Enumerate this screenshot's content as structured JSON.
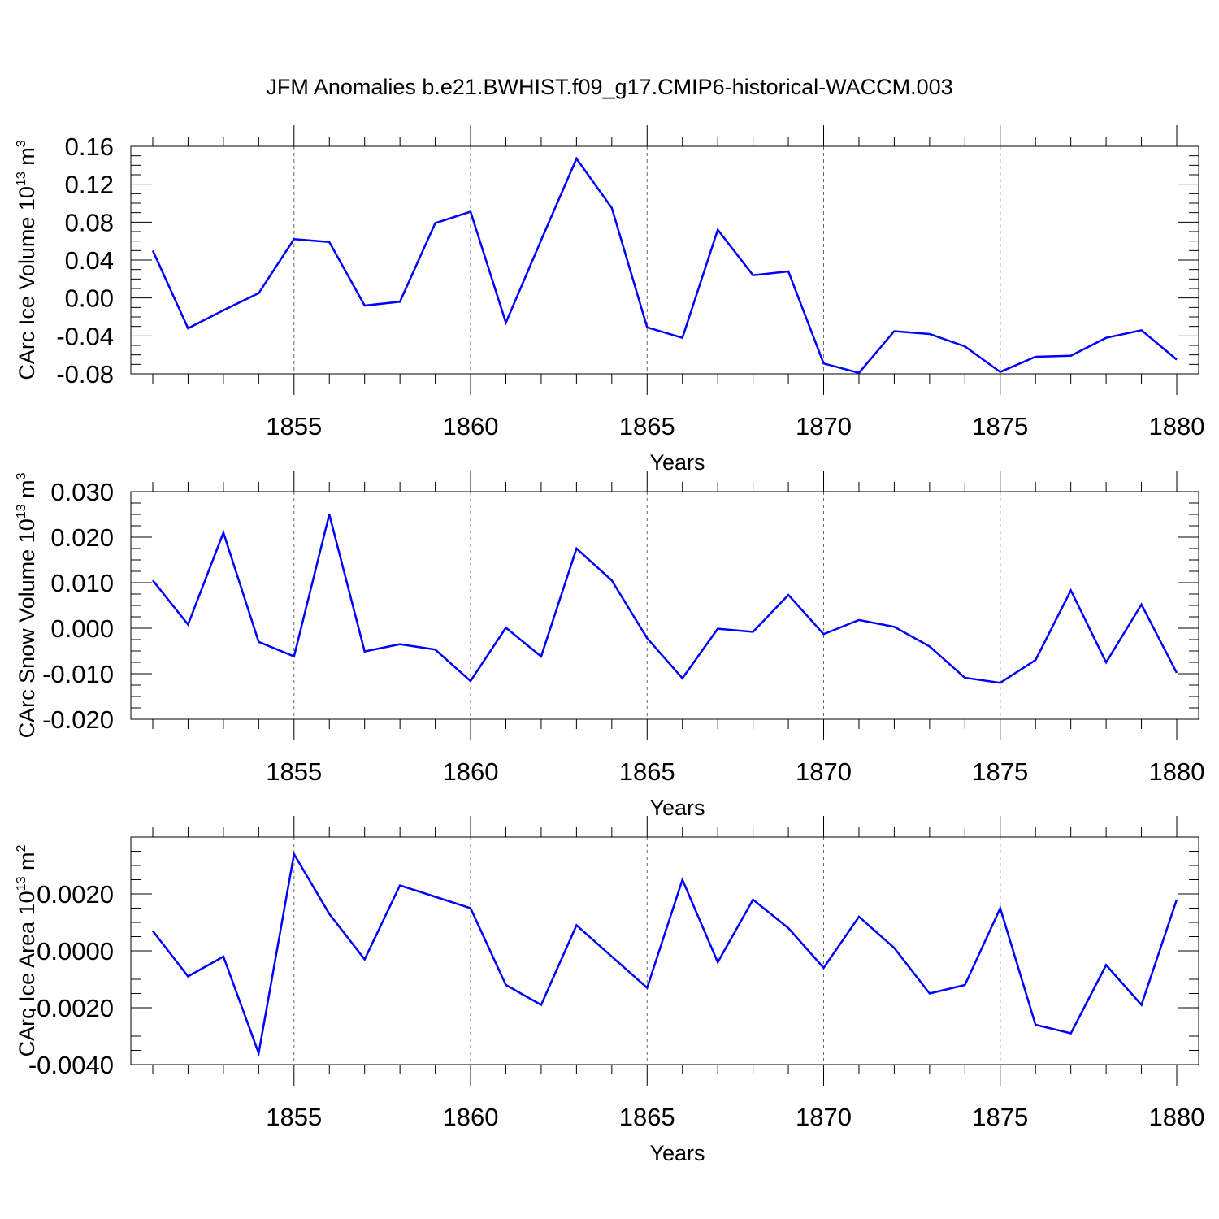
{
  "chart_data": [
    {
      "type": "line",
      "title": "JFM Anomalies b.e21.BWHIST.f09_g17.CMIP6-historical-WACCM.003",
      "xlabel": "Years",
      "ylabel": {
        "text": "CArc Ice Volume 10",
        "sup1": "13",
        "mid": " m",
        "sup2": "3"
      },
      "xlim": [
        1851,
        1880
      ],
      "ylim": [
        -0.08,
        0.16
      ],
      "yticks": [
        -0.08,
        -0.04,
        0.0,
        0.04,
        0.08,
        0.12,
        0.16
      ],
      "ytick_labels": [
        "-0.08",
        "-0.04",
        "0.00",
        "0.04",
        "0.08",
        "0.12",
        "0.16"
      ],
      "xticks": [
        1855,
        1860,
        1865,
        1870,
        1875,
        1880
      ],
      "xtick_labels": [
        "1855",
        "1860",
        "1865",
        "1870",
        "1875",
        "1880"
      ],
      "grid": "vertical dashed at major x ticks",
      "color": "#0000ff",
      "series": [
        {
          "name": "CArc Ice Volume",
          "x": [
            1851,
            1852,
            1853,
            1854,
            1855,
            1856,
            1857,
            1858,
            1859,
            1860,
            1861,
            1862,
            1863,
            1864,
            1865,
            1866,
            1867,
            1868,
            1869,
            1870,
            1871,
            1872,
            1873,
            1874,
            1875,
            1876,
            1877,
            1878,
            1879,
            1880
          ],
          "values": [
            0.05,
            -0.032,
            -0.013,
            0.005,
            0.062,
            0.059,
            -0.008,
            -0.004,
            0.079,
            0.091,
            -0.026,
            0.061,
            0.147,
            0.095,
            -0.031,
            -0.042,
            0.072,
            0.024,
            0.028,
            -0.069,
            -0.079,
            -0.035,
            -0.038,
            -0.051,
            -0.078,
            -0.062,
            -0.061,
            -0.042,
            -0.034,
            -0.065
          ]
        }
      ]
    },
    {
      "type": "line",
      "xlabel": "Years",
      "ylabel": {
        "text": "CArc Snow Volume 10",
        "sup1": "13",
        "mid": " m",
        "sup2": "3"
      },
      "xlim": [
        1851,
        1880
      ],
      "ylim": [
        -0.02,
        0.03
      ],
      "yticks": [
        -0.02,
        -0.01,
        0.0,
        0.01,
        0.02,
        0.03
      ],
      "ytick_labels": [
        "-0.020",
        "-0.010",
        "0.000",
        "0.010",
        "0.020",
        "0.030"
      ],
      "xticks": [
        1855,
        1860,
        1865,
        1870,
        1875,
        1880
      ],
      "xtick_labels": [
        "1855",
        "1860",
        "1865",
        "1870",
        "1875",
        "1880"
      ],
      "grid": "vertical dashed at major x ticks",
      "color": "#0000ff",
      "series": [
        {
          "name": "CArc Snow Volume",
          "x": [
            1851,
            1852,
            1853,
            1854,
            1855,
            1856,
            1857,
            1858,
            1859,
            1860,
            1861,
            1862,
            1863,
            1864,
            1865,
            1866,
            1867,
            1868,
            1869,
            1870,
            1871,
            1872,
            1873,
            1874,
            1875,
            1876,
            1877,
            1878,
            1879,
            1880
          ],
          "values": [
            0.0105,
            0.0008,
            0.021,
            -0.003,
            -0.0062,
            0.025,
            -0.0051,
            -0.0035,
            -0.0047,
            -0.0116,
            0.0001,
            -0.0062,
            0.0175,
            0.0105,
            -0.0022,
            -0.011,
            -0.0001,
            -0.0008,
            0.0073,
            -0.0013,
            0.0018,
            0.0003,
            -0.004,
            -0.0109,
            -0.012,
            -0.007,
            0.0083,
            -0.0075,
            0.0052,
            -0.0098
          ]
        }
      ]
    },
    {
      "type": "line",
      "xlabel": "Years",
      "ylabel": {
        "text": "CArc Ice Area 10",
        "sup1": "13",
        "mid": " m",
        "sup2": "2"
      },
      "xlim": [
        1851,
        1880
      ],
      "ylim": [
        -0.004,
        0.004
      ],
      "yticks": [
        -0.004,
        -0.002,
        0.0,
        0.002
      ],
      "ytick_labels": [
        "-0.0040",
        "-0.0020",
        "0.0000",
        "0.0020"
      ],
      "xticks": [
        1855,
        1860,
        1865,
        1870,
        1875,
        1880
      ],
      "xtick_labels": [
        "1855",
        "1860",
        "1865",
        "1870",
        "1875",
        "1880"
      ],
      "grid": "vertical dashed at major x ticks",
      "color": "#0000ff",
      "series": [
        {
          "name": "CArc Ice Area",
          "x": [
            1851,
            1852,
            1853,
            1854,
            1855,
            1856,
            1857,
            1858,
            1859,
            1860,
            1861,
            1862,
            1863,
            1864,
            1865,
            1866,
            1867,
            1868,
            1869,
            1870,
            1871,
            1872,
            1873,
            1874,
            1875,
            1876,
            1877,
            1878,
            1879,
            1880
          ],
          "values": [
            0.0007,
            -0.0009,
            -0.0002,
            -0.0036,
            0.0034,
            0.0013,
            -0.0003,
            0.0023,
            0.0019,
            0.0015,
            -0.0012,
            -0.0019,
            0.0009,
            -0.0002,
            -0.0013,
            0.0025,
            -0.0004,
            0.0018,
            0.0008,
            -0.0006,
            0.0012,
            0.0001,
            -0.0015,
            -0.0012,
            0.0015,
            -0.0026,
            -0.0029,
            -0.0005,
            -0.0019,
            0.0018
          ]
        }
      ]
    }
  ]
}
